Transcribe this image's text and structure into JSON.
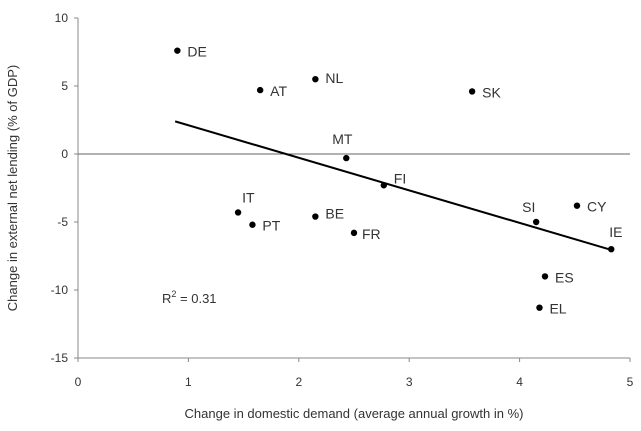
{
  "chart_data": {
    "type": "scatter",
    "title": "",
    "xlabel": "Change in domestic demand (average annual growth in %)",
    "ylabel": "Change in external net lending (% of GDP)",
    "xlim": [
      0,
      5
    ],
    "ylim": [
      -15,
      10
    ],
    "x_ticks": [
      0,
      1,
      2,
      3,
      4,
      5
    ],
    "y_ticks": [
      -15,
      -10,
      -5,
      0,
      5,
      10
    ],
    "x_tick_labels": [
      "0",
      "1",
      "2",
      "3",
      "4",
      "5"
    ],
    "y_tick_labels": [
      "-15",
      "-10",
      "-5",
      "0",
      "5",
      "10"
    ],
    "points": [
      {
        "label": "DE",
        "x": 0.9,
        "y": 7.6
      },
      {
        "label": "AT",
        "x": 1.65,
        "y": 4.7
      },
      {
        "label": "NL",
        "x": 2.15,
        "y": 5.5
      },
      {
        "label": "SK",
        "x": 3.57,
        "y": 4.6
      },
      {
        "label": "MT",
        "x": 2.43,
        "y": -0.3
      },
      {
        "label": "FI",
        "x": 2.77,
        "y": -2.3
      },
      {
        "label": "IT",
        "x": 1.45,
        "y": -4.3
      },
      {
        "label": "PT",
        "x": 1.58,
        "y": -5.2
      },
      {
        "label": "BE",
        "x": 2.15,
        "y": -4.6
      },
      {
        "label": "FR",
        "x": 2.5,
        "y": -5.8
      },
      {
        "label": "SI",
        "x": 4.15,
        "y": -5.0
      },
      {
        "label": "CY",
        "x": 4.52,
        "y": -3.8
      },
      {
        "label": "IE",
        "x": 4.83,
        "y": -7.0
      },
      {
        "label": "ES",
        "x": 4.23,
        "y": -9.0
      },
      {
        "label": "EL",
        "x": 4.18,
        "y": -11.3
      }
    ],
    "trendline": {
      "x": [
        0.88,
        4.85
      ],
      "y": [
        2.4,
        -7.1
      ]
    },
    "annotation": {
      "text": "R",
      "superscript": "2",
      "rest": " = 0.31"
    },
    "zero_line": true,
    "grid": false,
    "colors": {
      "points": "#000000",
      "trendline": "#000000",
      "axis": "#888888",
      "text": "#333333"
    }
  }
}
